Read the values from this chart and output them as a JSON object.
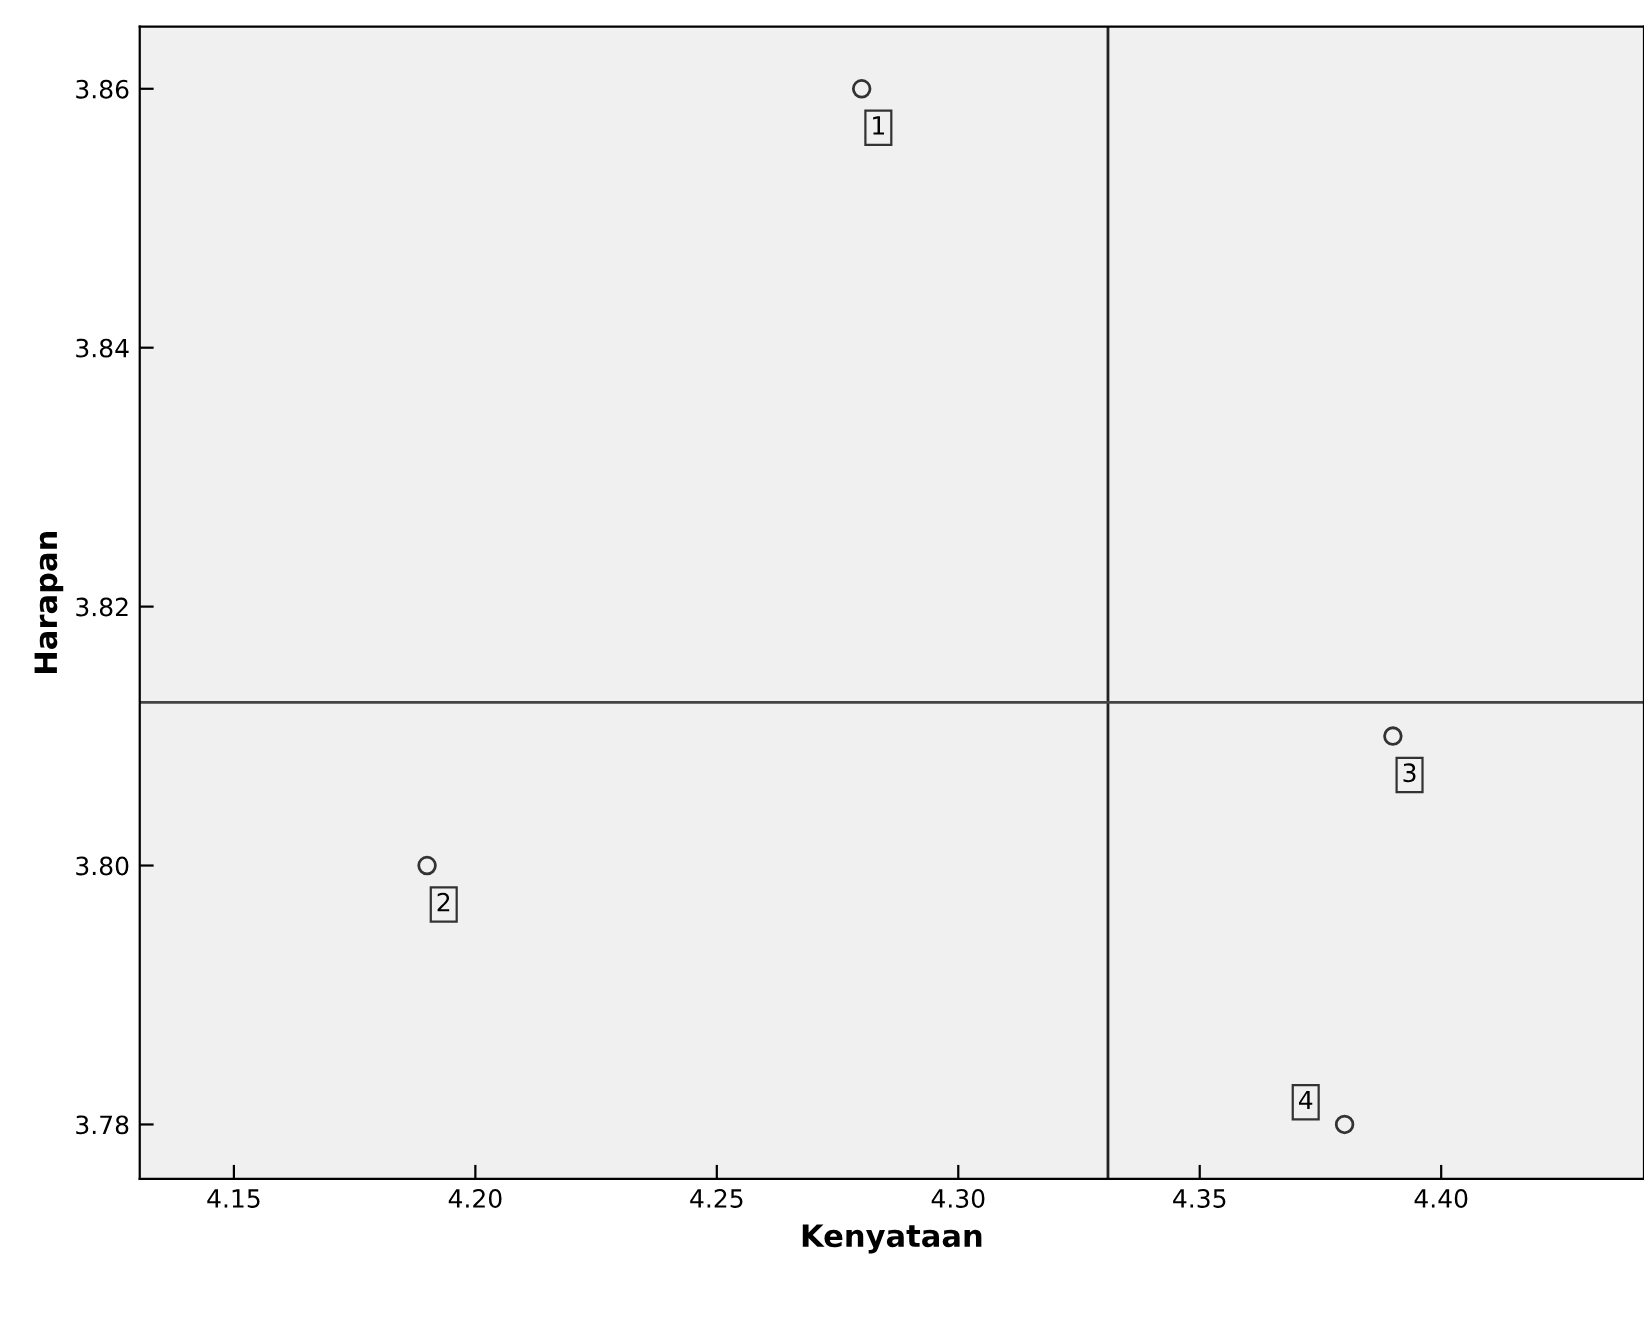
{
  "chart_data": {
    "type": "scatter",
    "xlabel": "Kenyataan",
    "ylabel": "Harapan",
    "x": [
      4.28,
      4.19,
      4.39,
      4.38
    ],
    "series": [
      {
        "color": "#333333",
        "values": [
          3.86,
          3.8,
          3.81,
          3.78
        ]
      }
    ],
    "marker": "circle",
    "grid": false,
    "legend": false,
    "xlim": [
      4.1305,
      4.442
    ],
    "xticks": [
      {
        "value": 4.15,
        "label": "4.15"
      },
      {
        "value": 4.2,
        "label": "4.20"
      },
      {
        "value": 4.25,
        "label": "4.25"
      },
      {
        "value": 4.3,
        "label": "4.30"
      },
      {
        "value": 4.35,
        "label": "4.35"
      },
      {
        "value": 4.4,
        "label": "4.40"
      }
    ],
    "ylim": [
      3.7758,
      3.8648
    ],
    "yticks": [
      {
        "value": 3.78,
        "label": "3.78"
      },
      {
        "value": 3.8,
        "label": "3.80"
      },
      {
        "value": 3.82,
        "label": "3.82"
      },
      {
        "value": 3.84,
        "label": "3.84"
      },
      {
        "value": 3.86,
        "label": "3.86"
      }
    ],
    "ref_lines": [
      {
        "axis": "x",
        "value": 4.331,
        "color": "#222222"
      },
      {
        "axis": "y",
        "value": 3.8126,
        "color": "#444444"
      }
    ],
    "annotations": [
      {
        "text": "1",
        "x": 4.28,
        "y": 3.86
      },
      {
        "text": "2",
        "x": 4.19,
        "y": 3.8
      },
      {
        "text": "3",
        "x": 4.39,
        "y": 3.81
      },
      {
        "text": "4",
        "x": 4.38,
        "y": 3.78
      }
    ]
  }
}
